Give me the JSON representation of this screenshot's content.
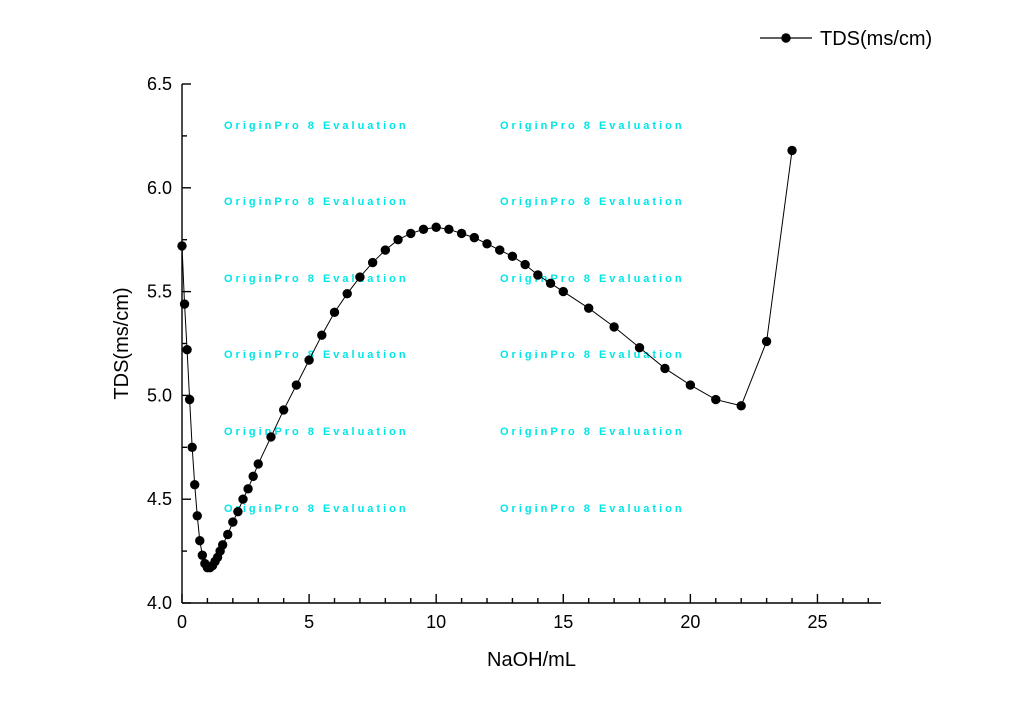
{
  "figure": {
    "background": "#ffffff"
  },
  "chart_data": {
    "type": "line-scatter",
    "title": "",
    "xlabel": "NaOH/mL",
    "ylabel": "TDS(ms/cm)",
    "xlim": [
      0,
      27.5
    ],
    "ylim": [
      4.0,
      6.5
    ],
    "grid": false,
    "x_minor_step": 1,
    "y_minor_step": 0.25,
    "x_ticks": [
      {
        "v": 0,
        "label": "0"
      },
      {
        "v": 5,
        "label": "5"
      },
      {
        "v": 10,
        "label": "10"
      },
      {
        "v": 15,
        "label": "15"
      },
      {
        "v": 20,
        "label": "20"
      },
      {
        "v": 25,
        "label": "25"
      }
    ],
    "y_ticks": [
      {
        "v": 4.0,
        "label": "4.0"
      },
      {
        "v": 4.5,
        "label": "4.5"
      },
      {
        "v": 5.0,
        "label": "5.0"
      },
      {
        "v": 5.5,
        "label": "5.5"
      },
      {
        "v": 6.0,
        "label": "6.0"
      },
      {
        "v": 6.5,
        "label": "6.5"
      }
    ],
    "legend": {
      "position": "top-right",
      "entries": [
        "TDS(ms/cm)"
      ]
    },
    "watermark": {
      "text": "OriginPro 8 Evaluation",
      "color": "#00E6E6"
    },
    "series": [
      {
        "name": "TDS(ms/cm)",
        "color": "#000000",
        "marker": "filled-circle",
        "x": [
          0,
          0.1,
          0.2,
          0.3,
          0.4,
          0.5,
          0.6,
          0.7,
          0.8,
          0.9,
          1.0,
          1.1,
          1.2,
          1.3,
          1.4,
          1.5,
          1.6,
          1.8,
          2.0,
          2.2,
          2.4,
          2.6,
          2.8,
          3.0,
          3.5,
          4.0,
          4.5,
          5.0,
          5.5,
          6.0,
          6.5,
          7.0,
          7.5,
          8.0,
          8.5,
          9.0,
          9.5,
          10.0,
          10.5,
          11.0,
          11.5,
          12.0,
          12.5,
          13.0,
          13.5,
          14.0,
          14.5,
          15.0,
          16.0,
          17.0,
          18.0,
          19.0,
          20.0,
          21.0,
          22.0,
          23.0,
          24.0
        ],
        "y": [
          5.72,
          5.44,
          5.22,
          4.98,
          4.75,
          4.57,
          4.42,
          4.3,
          4.23,
          4.19,
          4.17,
          4.17,
          4.18,
          4.2,
          4.22,
          4.25,
          4.28,
          4.33,
          4.39,
          4.44,
          4.5,
          4.55,
          4.61,
          4.67,
          4.8,
          4.93,
          5.05,
          5.17,
          5.29,
          5.4,
          5.49,
          5.57,
          5.64,
          5.7,
          5.75,
          5.78,
          5.8,
          5.81,
          5.8,
          5.78,
          5.76,
          5.73,
          5.7,
          5.67,
          5.63,
          5.58,
          5.54,
          5.5,
          5.42,
          5.33,
          5.23,
          5.13,
          5.05,
          4.98,
          4.95,
          5.26,
          6.18
        ]
      }
    ]
  }
}
